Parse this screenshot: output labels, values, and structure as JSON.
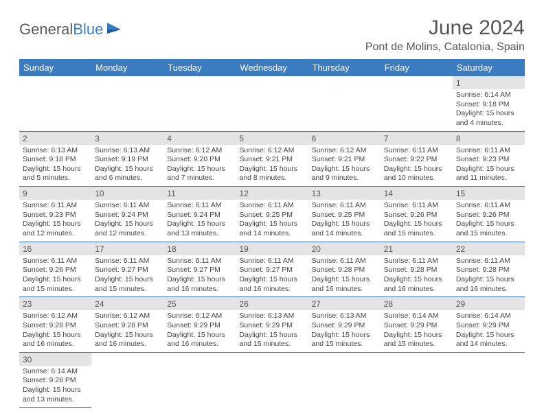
{
  "logo": {
    "text1": "General",
    "text2": "Blue"
  },
  "title": "June 2024",
  "location": "Pont de Molins, Catalonia, Spain",
  "colors": {
    "header_bg": "#3b7bbf",
    "header_text": "#ffffff",
    "daynum_bg": "#e4e4e4",
    "cell_border": "#3b7bbf"
  },
  "weekdays": [
    "Sunday",
    "Monday",
    "Tuesday",
    "Wednesday",
    "Thursday",
    "Friday",
    "Saturday"
  ],
  "weeks": [
    [
      null,
      null,
      null,
      null,
      null,
      null,
      {
        "n": "1",
        "sr": "Sunrise: 6:14 AM",
        "ss": "Sunset: 9:18 PM",
        "dl": "Daylight: 15 hours and 4 minutes."
      }
    ],
    [
      {
        "n": "2",
        "sr": "Sunrise: 6:13 AM",
        "ss": "Sunset: 9:18 PM",
        "dl": "Daylight: 15 hours and 5 minutes."
      },
      {
        "n": "3",
        "sr": "Sunrise: 6:13 AM",
        "ss": "Sunset: 9:19 PM",
        "dl": "Daylight: 15 hours and 6 minutes."
      },
      {
        "n": "4",
        "sr": "Sunrise: 6:12 AM",
        "ss": "Sunset: 9:20 PM",
        "dl": "Daylight: 15 hours and 7 minutes."
      },
      {
        "n": "5",
        "sr": "Sunrise: 6:12 AM",
        "ss": "Sunset: 9:21 PM",
        "dl": "Daylight: 15 hours and 8 minutes."
      },
      {
        "n": "6",
        "sr": "Sunrise: 6:12 AM",
        "ss": "Sunset: 9:21 PM",
        "dl": "Daylight: 15 hours and 9 minutes."
      },
      {
        "n": "7",
        "sr": "Sunrise: 6:11 AM",
        "ss": "Sunset: 9:22 PM",
        "dl": "Daylight: 15 hours and 10 minutes."
      },
      {
        "n": "8",
        "sr": "Sunrise: 6:11 AM",
        "ss": "Sunset: 9:23 PM",
        "dl": "Daylight: 15 hours and 11 minutes."
      }
    ],
    [
      {
        "n": "9",
        "sr": "Sunrise: 6:11 AM",
        "ss": "Sunset: 9:23 PM",
        "dl": "Daylight: 15 hours and 12 minutes."
      },
      {
        "n": "10",
        "sr": "Sunrise: 6:11 AM",
        "ss": "Sunset: 9:24 PM",
        "dl": "Daylight: 15 hours and 12 minutes."
      },
      {
        "n": "11",
        "sr": "Sunrise: 6:11 AM",
        "ss": "Sunset: 9:24 PM",
        "dl": "Daylight: 15 hours and 13 minutes."
      },
      {
        "n": "12",
        "sr": "Sunrise: 6:11 AM",
        "ss": "Sunset: 9:25 PM",
        "dl": "Daylight: 15 hours and 14 minutes."
      },
      {
        "n": "13",
        "sr": "Sunrise: 6:11 AM",
        "ss": "Sunset: 9:25 PM",
        "dl": "Daylight: 15 hours and 14 minutes."
      },
      {
        "n": "14",
        "sr": "Sunrise: 6:11 AM",
        "ss": "Sunset: 9:26 PM",
        "dl": "Daylight: 15 hours and 15 minutes."
      },
      {
        "n": "15",
        "sr": "Sunrise: 6:11 AM",
        "ss": "Sunset: 9:26 PM",
        "dl": "Daylight: 15 hours and 15 minutes."
      }
    ],
    [
      {
        "n": "16",
        "sr": "Sunrise: 6:11 AM",
        "ss": "Sunset: 9:26 PM",
        "dl": "Daylight: 15 hours and 15 minutes."
      },
      {
        "n": "17",
        "sr": "Sunrise: 6:11 AM",
        "ss": "Sunset: 9:27 PM",
        "dl": "Daylight: 15 hours and 15 minutes."
      },
      {
        "n": "18",
        "sr": "Sunrise: 6:11 AM",
        "ss": "Sunset: 9:27 PM",
        "dl": "Daylight: 15 hours and 16 minutes."
      },
      {
        "n": "19",
        "sr": "Sunrise: 6:11 AM",
        "ss": "Sunset: 9:27 PM",
        "dl": "Daylight: 15 hours and 16 minutes."
      },
      {
        "n": "20",
        "sr": "Sunrise: 6:11 AM",
        "ss": "Sunset: 9:28 PM",
        "dl": "Daylight: 15 hours and 16 minutes."
      },
      {
        "n": "21",
        "sr": "Sunrise: 6:11 AM",
        "ss": "Sunset: 9:28 PM",
        "dl": "Daylight: 15 hours and 16 minutes."
      },
      {
        "n": "22",
        "sr": "Sunrise: 6:11 AM",
        "ss": "Sunset: 9:28 PM",
        "dl": "Daylight: 15 hours and 16 minutes."
      }
    ],
    [
      {
        "n": "23",
        "sr": "Sunrise: 6:12 AM",
        "ss": "Sunset: 9:28 PM",
        "dl": "Daylight: 15 hours and 16 minutes."
      },
      {
        "n": "24",
        "sr": "Sunrise: 6:12 AM",
        "ss": "Sunset: 9:28 PM",
        "dl": "Daylight: 15 hours and 16 minutes."
      },
      {
        "n": "25",
        "sr": "Sunrise: 6:12 AM",
        "ss": "Sunset: 9:29 PM",
        "dl": "Daylight: 15 hours and 16 minutes."
      },
      {
        "n": "26",
        "sr": "Sunrise: 6:13 AM",
        "ss": "Sunset: 9:29 PM",
        "dl": "Daylight: 15 hours and 15 minutes."
      },
      {
        "n": "27",
        "sr": "Sunrise: 6:13 AM",
        "ss": "Sunset: 9:29 PM",
        "dl": "Daylight: 15 hours and 15 minutes."
      },
      {
        "n": "28",
        "sr": "Sunrise: 6:14 AM",
        "ss": "Sunset: 9:29 PM",
        "dl": "Daylight: 15 hours and 15 minutes."
      },
      {
        "n": "29",
        "sr": "Sunrise: 6:14 AM",
        "ss": "Sunset: 9:29 PM",
        "dl": "Daylight: 15 hours and 14 minutes."
      }
    ],
    [
      {
        "n": "30",
        "sr": "Sunrise: 6:14 AM",
        "ss": "Sunset: 9:28 PM",
        "dl": "Daylight: 15 hours and 13 minutes."
      },
      null,
      null,
      null,
      null,
      null,
      null
    ]
  ]
}
